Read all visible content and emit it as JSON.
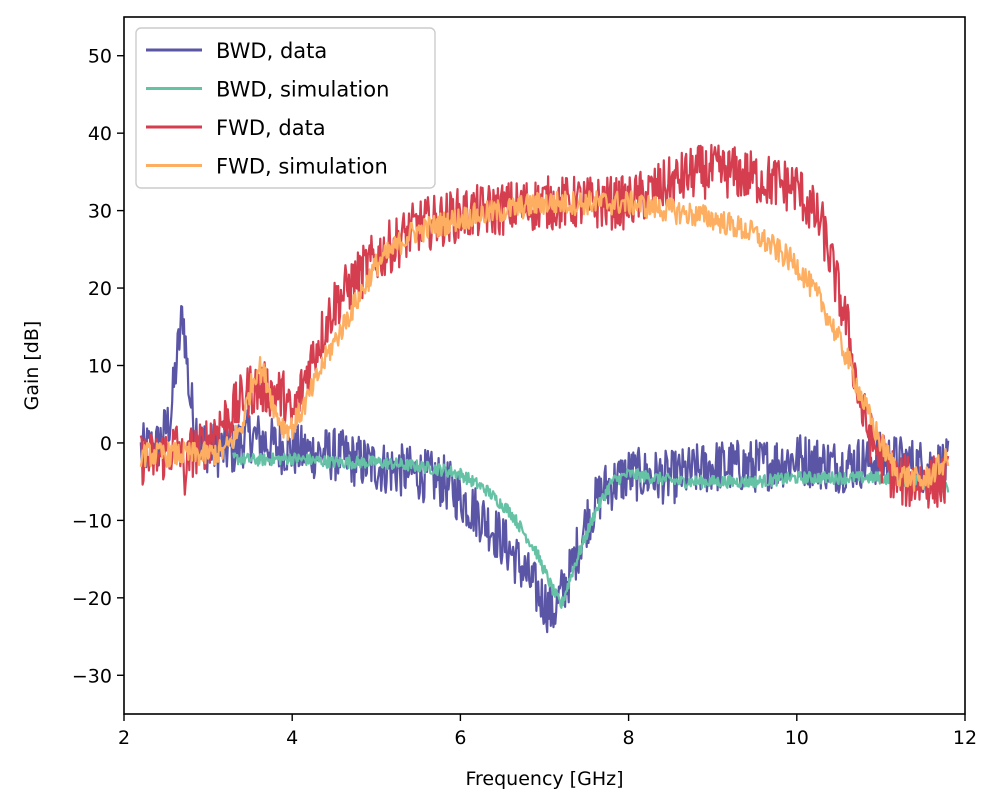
{
  "chart_data": {
    "type": "line",
    "title": "",
    "xlabel": "Frequency [GHz]",
    "ylabel": "Gain [dB]",
    "xlim": [
      2,
      12
    ],
    "ylim": [
      -35,
      55
    ],
    "xticks": [
      2,
      4,
      6,
      8,
      10,
      12
    ],
    "yticks": [
      -30,
      -20,
      -10,
      0,
      10,
      20,
      30,
      40,
      50
    ],
    "xtick_labels": [
      "2",
      "4",
      "6",
      "8",
      "10",
      "12"
    ],
    "ytick_labels": [
      "−30",
      "−20",
      "−10",
      "0",
      "10",
      "20",
      "30",
      "40",
      "50"
    ],
    "grid": false,
    "legend_position": "upper-left",
    "series": [
      {
        "name": "BWD, data",
        "color": "#5b55a5",
        "x": [
          2.2,
          2.4,
          2.55,
          2.62,
          2.7,
          2.78,
          2.9,
          3.1,
          3.3,
          3.5,
          3.7,
          4.0,
          4.5,
          5.0,
          5.5,
          5.8,
          6.0,
          6.3,
          6.6,
          6.9,
          7.1,
          7.3,
          7.5,
          7.7,
          8.0,
          8.5,
          9.0,
          9.5,
          10.0,
          10.5,
          11.0,
          11.5,
          11.8
        ],
        "y": [
          -1,
          -0.5,
          3,
          10,
          17,
          6,
          0,
          -1,
          -0.8,
          1,
          0,
          -1,
          -1.5,
          -3,
          -4,
          -5,
          -7,
          -10,
          -14,
          -19,
          -22,
          -17,
          -10,
          -6,
          -4,
          -4.5,
          -3,
          -3,
          -2,
          -3,
          -2,
          -3,
          -3
        ],
        "noise": 3.5
      },
      {
        "name": "BWD, simulation",
        "color": "#66c2a5",
        "x": [
          3.3,
          3.6,
          4.0,
          4.5,
          5.0,
          5.5,
          5.8,
          6.0,
          6.3,
          6.6,
          6.9,
          7.1,
          7.2,
          7.35,
          7.6,
          7.8,
          8.0,
          8.3,
          8.6,
          9.0,
          9.5,
          10.0,
          10.5,
          11.0,
          11.5,
          11.8
        ],
        "y": [
          -2,
          -2.2,
          -2,
          -2.5,
          -2.5,
          -3,
          -3.5,
          -4,
          -6,
          -9,
          -14,
          -19,
          -21,
          -16,
          -9,
          -5,
          -4,
          -4.5,
          -5,
          -5,
          -5,
          -4.5,
          -4.5,
          -4.5,
          -5,
          -6
        ],
        "noise": 0.8
      },
      {
        "name": "FWD, data",
        "color": "#d53e4f",
        "x": [
          2.2,
          2.4,
          2.55,
          2.65,
          2.72,
          2.8,
          2.9,
          3.1,
          3.3,
          3.5,
          3.7,
          3.9,
          4.0,
          4.2,
          4.5,
          5.0,
          5.5,
          6.0,
          7.0,
          8.0,
          8.4,
          8.8,
          9.2,
          9.6,
          10.0,
          10.3,
          10.6,
          10.75,
          10.9,
          11.2,
          11.5,
          11.8
        ],
        "y": [
          -2,
          -2,
          -1,
          0,
          -4,
          -1,
          -1,
          2,
          4,
          7,
          7,
          6,
          3,
          10,
          18,
          24,
          28,
          29.5,
          31,
          31,
          33,
          35,
          35,
          34,
          33,
          28,
          15,
          5,
          0,
          -5,
          -5,
          -5
        ],
        "noise": 3.5
      },
      {
        "name": "FWD, simulation",
        "color": "#fdae61",
        "x": [
          2.2,
          2.6,
          3.0,
          3.2,
          3.4,
          3.5,
          3.6,
          3.7,
          3.8,
          3.9,
          4.0,
          4.2,
          4.4,
          4.7,
          5.0,
          5.4,
          6.0,
          6.5,
          7.0,
          7.5,
          8.0,
          8.5,
          9.0,
          9.5,
          10.0,
          10.3,
          10.6,
          10.8,
          11.0,
          11.2,
          11.5,
          11.8
        ],
        "y": [
          -1.5,
          -1.5,
          -1.5,
          -1,
          2,
          7,
          10,
          8,
          4,
          2,
          2,
          6,
          11,
          17,
          23,
          27,
          29,
          30,
          31,
          31,
          31,
          30,
          29,
          27,
          23,
          18,
          11,
          5,
          0,
          -4,
          -5,
          -2
        ],
        "noise": 1.6
      }
    ]
  }
}
